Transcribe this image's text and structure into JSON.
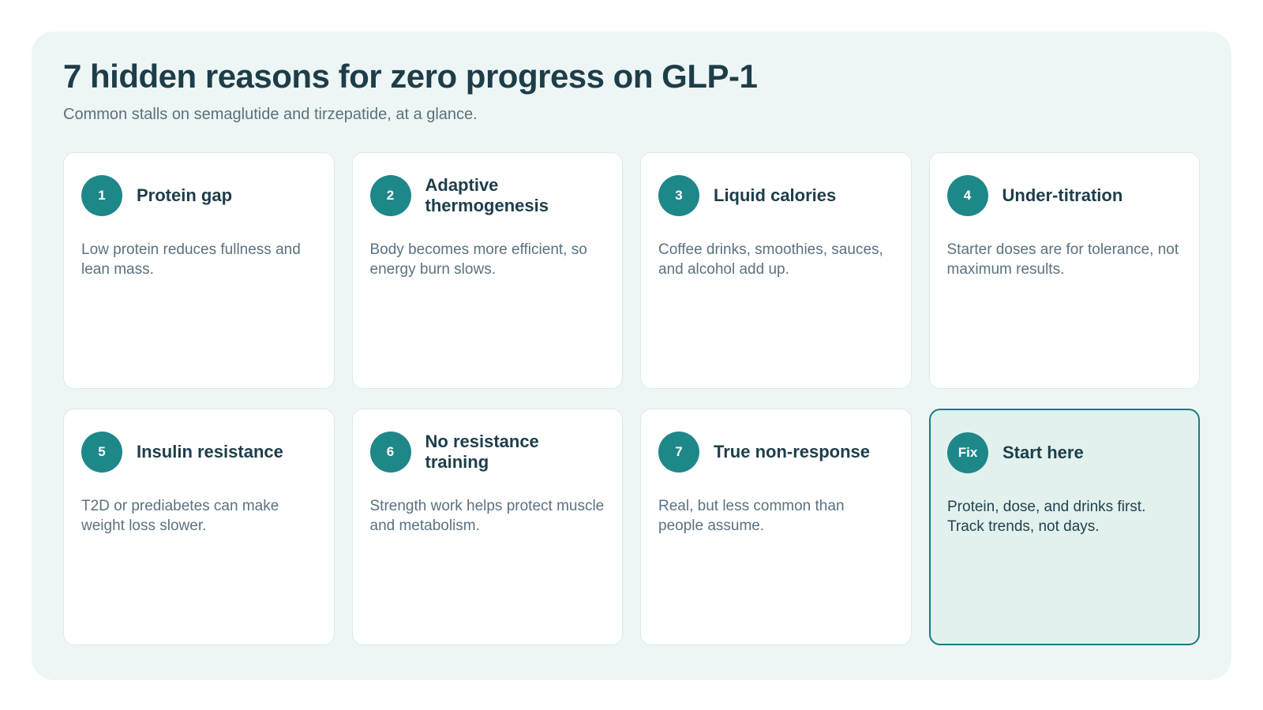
{
  "page": {
    "title": "7 hidden reasons for zero progress on GLP-1",
    "subtitle": "Common stalls on semaglutide and tirzepatide, at a glance."
  },
  "colors": {
    "accent_teal": "#1e8889",
    "highlight_border": "#147e84",
    "heading_text": "#1d3d49",
    "body_text": "#5a7280",
    "panel_background": "#edf6f5",
    "card_background": "#ffffff",
    "card_border": "#d9ebe8",
    "highlight_card_background": "#e2f1ee"
  },
  "cards": [
    {
      "badge": "1",
      "title": "Protein gap",
      "body": "Low protein reduces fullness and lean mass."
    },
    {
      "badge": "2",
      "title": "Adaptive thermogenesis",
      "body": "Body becomes more efficient, so energy burn slows."
    },
    {
      "badge": "3",
      "title": "Liquid calories",
      "body": "Coffee drinks, smoothies, sauces, and alcohol add up."
    },
    {
      "badge": "4",
      "title": "Under-titration",
      "body": "Starter doses are for tolerance, not maximum results."
    },
    {
      "badge": "5",
      "title": "Insulin resistance",
      "body": "T2D or prediabetes can make weight loss slower."
    },
    {
      "badge": "6",
      "title": "No resistance training",
      "body": "Strength work helps protect muscle and metabolism."
    },
    {
      "badge": "7",
      "title": "True non-response",
      "body": "Real, but less common than people assume."
    },
    {
      "badge": "Fix",
      "title": "Start here",
      "body": "Protein, dose, and drinks first. Track trends, not days."
    }
  ]
}
